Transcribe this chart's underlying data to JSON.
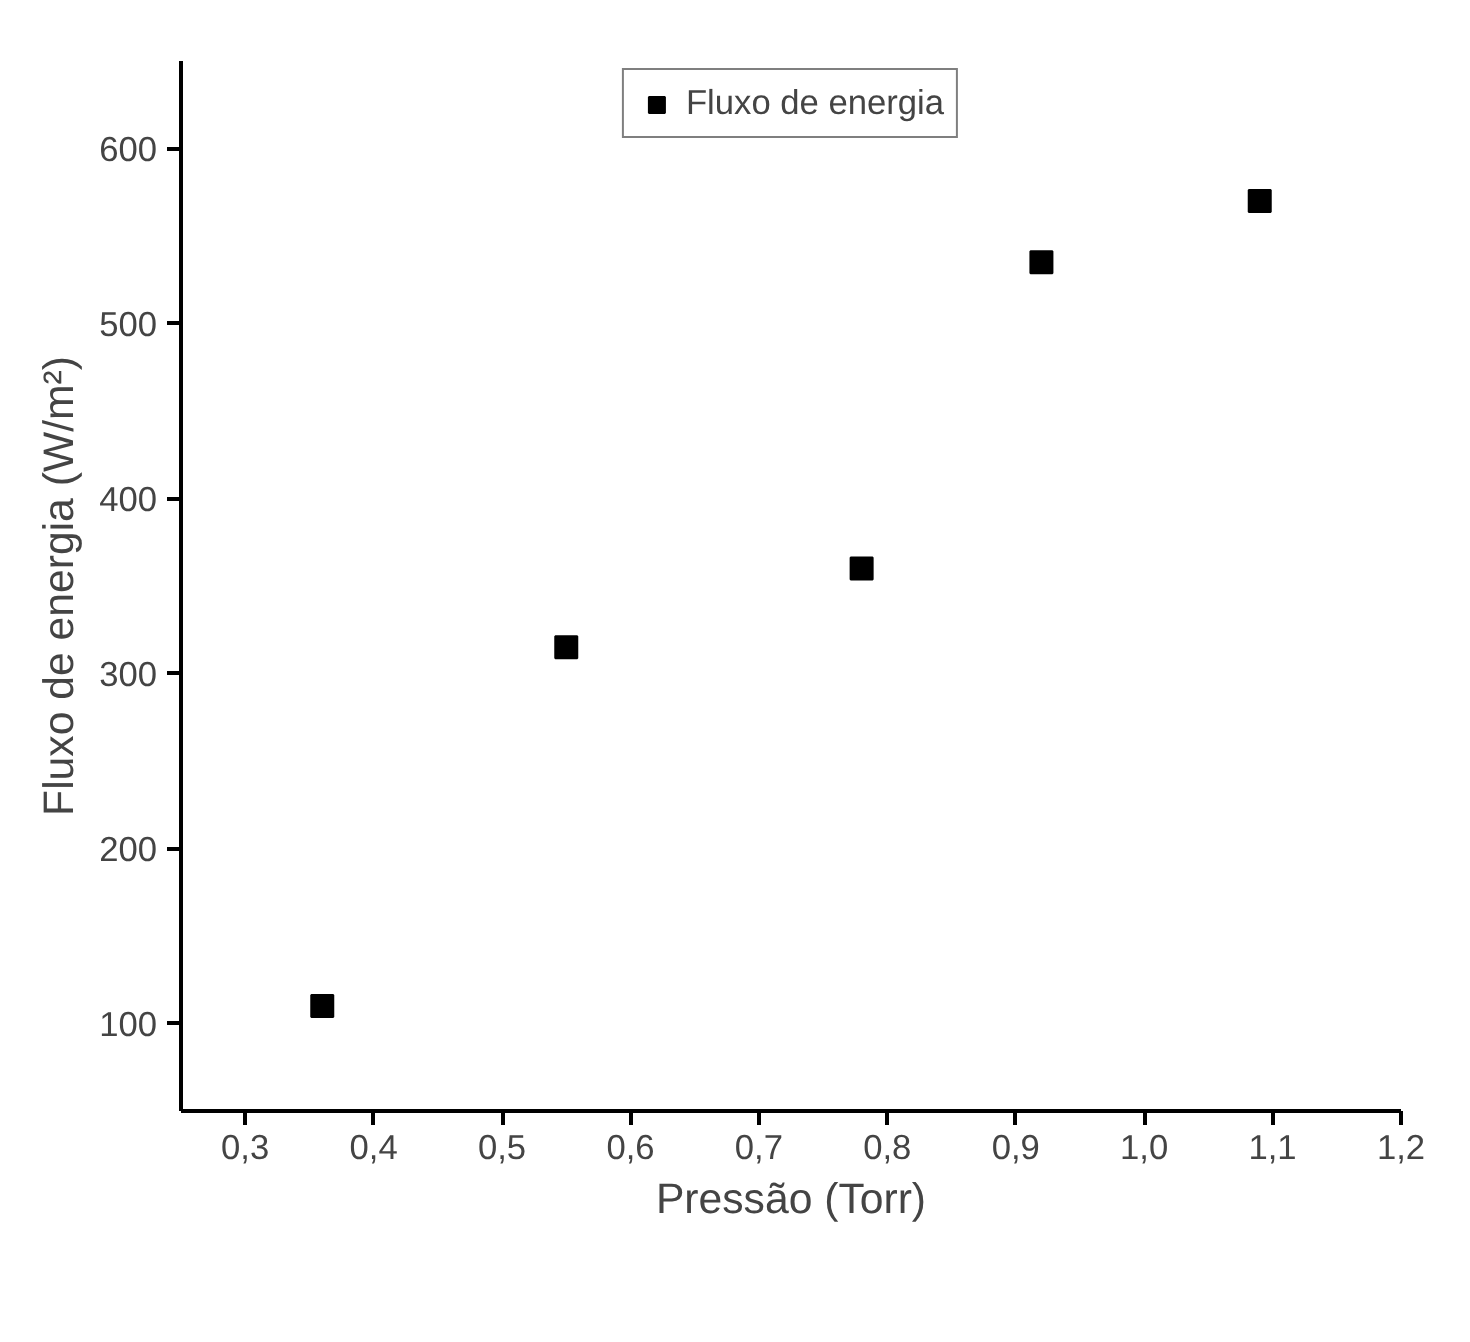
{
  "chart_data": {
    "type": "scatter",
    "xlabel": "Pressão (Torr)",
    "ylabel": "Fluxo de energia (W/m²)",
    "x": [
      0.36,
      0.55,
      0.78,
      0.92,
      1.09
    ],
    "series": [
      {
        "name": "Fluxo de energia",
        "color": "#000000",
        "values": [
          110,
          315,
          360,
          535,
          570
        ]
      }
    ],
    "xlim": [
      0.25,
      1.2
    ],
    "ylim": [
      50,
      650
    ],
    "xticks": [
      {
        "value": 0.3,
        "label": "0,3"
      },
      {
        "value": 0.4,
        "label": "0,4"
      },
      {
        "value": 0.5,
        "label": "0,5"
      },
      {
        "value": 0.6,
        "label": "0,6"
      },
      {
        "value": 0.7,
        "label": "0,7"
      },
      {
        "value": 0.8,
        "label": "0,8"
      },
      {
        "value": 0.9,
        "label": "0,9"
      },
      {
        "value": 1.0,
        "label": "1,0"
      },
      {
        "value": 1.1,
        "label": "1,1"
      },
      {
        "value": 1.2,
        "label": "1,2"
      }
    ],
    "yticks": [
      100,
      200,
      300,
      400,
      500,
      600
    ],
    "marker": "square",
    "legend": "top",
    "grid": false
  }
}
